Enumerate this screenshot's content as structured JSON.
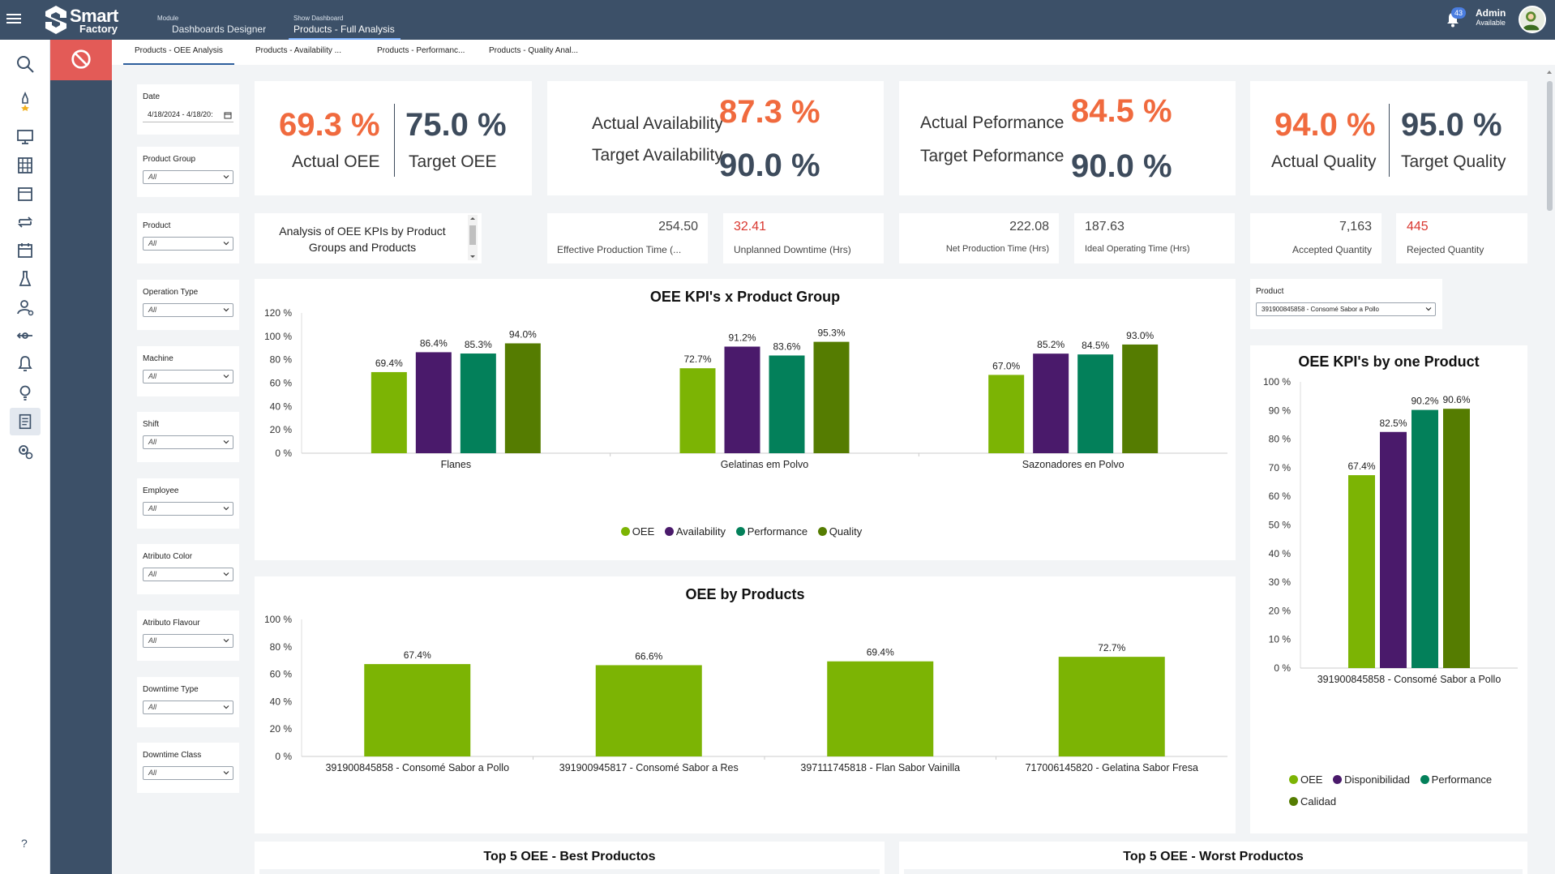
{
  "header": {
    "brand_line1": "Smart",
    "brand_line2": "Factory",
    "module_small": "Module",
    "module_name": "Dashboards Designer",
    "dash_small": "Show Dashboard",
    "dash_name": "Products - Full Analysis",
    "notification_count": "43",
    "user_name": "Admin",
    "user_status": "Available"
  },
  "tabs": [
    {
      "label": "Products - OEE Analysis"
    },
    {
      "label": "Products - Availability ..."
    },
    {
      "label": "Products - Performanc..."
    },
    {
      "label": "Products - Quality Anal..."
    }
  ],
  "filters": {
    "date": {
      "label": "Date",
      "value": "4/18/2024 - 4/18/20:"
    },
    "items": [
      {
        "label": "Product Group",
        "value": "All"
      },
      {
        "label": "Product",
        "value": "All"
      },
      {
        "label": "Operation Type",
        "value": "All"
      },
      {
        "label": "Machine",
        "value": "All"
      },
      {
        "label": "Shift",
        "value": "All"
      },
      {
        "label": "Employee",
        "value": "All"
      },
      {
        "label": "Atributo Color",
        "value": "All"
      },
      {
        "label": "Atributo Flavour",
        "value": "All"
      },
      {
        "label": "Downtime Type",
        "value": "All"
      },
      {
        "label": "Downtime Class",
        "value": "All"
      }
    ]
  },
  "kpis": {
    "actual_oee": "69.3 %",
    "actual_oee_label": "Actual OEE",
    "target_oee": "75.0 %",
    "target_oee_label": "Target OEE",
    "actual_avail_label": "Actual Availability",
    "actual_avail": "87.3 %",
    "target_avail_label": "Target Availability",
    "target_avail": "90.0 %",
    "actual_perf_label": "Actual Peformance",
    "actual_perf": "84.5 %",
    "target_perf_label": "Target Peformance",
    "target_perf": "90.0 %",
    "actual_quality": "94.0 %",
    "actual_quality_label": "Actual Quality",
    "target_quality": "95.0 %",
    "target_quality_label": "Target Quality"
  },
  "description": "Analysis of OEE KPIs by Product Groups and Products",
  "metrics": [
    {
      "value": "254.50",
      "label": "Effective Production Time (..."
    },
    {
      "value": "32.41",
      "label": "Unplanned Downtime (Hrs)"
    },
    {
      "value": "222.08",
      "label": "Net Production Time (Hrs)"
    },
    {
      "value": "187.63",
      "label": "Ideal Operating Time (Hrs)"
    },
    {
      "value": "7,163",
      "label": "Accepted Quantity"
    },
    {
      "value": "445",
      "label": "Rejected Quantity"
    }
  ],
  "product_selector": {
    "label": "Product",
    "value": "391900845858 - Consomé Sabor a Pollo"
  },
  "bottom_titles": {
    "best": "Top 5 OEE - Best Productos",
    "worst": "Top 5 OEE - Worst Productos"
  },
  "colors": {
    "oee": "#7cb404",
    "availability": "#4a1a6b",
    "performance": "#03805a",
    "quality": "#557c01",
    "accent_orange": "#f06a3e",
    "header": "#3c5068"
  },
  "icons": [
    "search-icon",
    "rocket-star-icon",
    "monitor-icon",
    "building-icon",
    "inbox-icon",
    "cycle-icon",
    "calendar-icon",
    "flask-icon",
    "user-gear-icon",
    "arrow-connect-icon",
    "bell-icon",
    "bulb-icon",
    "report-icon",
    "settings-search-icon",
    "help-icon"
  ],
  "chart_data": [
    {
      "type": "bar",
      "title": "OEE KPI's x Product Group",
      "categories": [
        "Flanes",
        "Gelatinas em Polvo",
        "Sazonadores en Polvo"
      ],
      "series": [
        {
          "name": "OEE",
          "values": [
            69.4,
            72.7,
            67.0
          ],
          "labels": [
            "69.4%",
            "72.7%",
            "67.0%"
          ]
        },
        {
          "name": "Availability",
          "values": [
            86.4,
            91.2,
            85.2
          ],
          "labels": [
            "86.4%",
            "91.2%",
            "85.2%"
          ]
        },
        {
          "name": "Performance",
          "values": [
            85.3,
            83.6,
            84.5
          ],
          "labels": [
            "85.3%",
            "83.6%",
            "84.5%"
          ]
        },
        {
          "name": "Quality",
          "values": [
            94.0,
            95.3,
            93.0
          ],
          "labels": [
            "94.0%",
            "95.3%",
            "93.0%"
          ]
        }
      ],
      "yticks": [
        "0 %",
        "20 %",
        "40 %",
        "60 %",
        "80 %",
        "100 %",
        "120 %"
      ],
      "ylim": [
        0,
        120
      ],
      "legend_position": "bottom"
    },
    {
      "type": "bar",
      "title": "OEE by Products",
      "categories": [
        "391900845858 - Consomé Sabor a Pollo",
        "391900945817 - Consomé Sabor a Res",
        "397111745818 - Flan Sabor Vainilla",
        "717006145820 - Gelatina Sabor Fresa"
      ],
      "series": [
        {
          "values": [
            67.4,
            66.6,
            69.4,
            72.7
          ],
          "labels": [
            "67.4%",
            "66.6%",
            "69.4%",
            "72.7%"
          ]
        }
      ],
      "yticks": [
        "0 %",
        "20 %",
        "40 %",
        "60 %",
        "80 %",
        "100 %"
      ],
      "ylim": [
        0,
        100
      ]
    },
    {
      "type": "bar",
      "title": "OEE KPI's by one Product",
      "categories": [
        "391900845858 - Consomé Sabor a Pollo"
      ],
      "series": [
        {
          "name": "OEE",
          "values": [
            67.4
          ],
          "labels": [
            "67.4%"
          ]
        },
        {
          "name": "Disponibilidad",
          "values": [
            82.5
          ],
          "labels": [
            "82.5%"
          ]
        },
        {
          "name": "Performance",
          "values": [
            90.2
          ],
          "labels": [
            "90.2%"
          ]
        },
        {
          "name": "Calidad",
          "values": [
            90.6
          ],
          "labels": [
            "90.6%"
          ]
        }
      ],
      "yticks": [
        "0 %",
        "10 %",
        "20 %",
        "30 %",
        "40 %",
        "50 %",
        "60 %",
        "70 %",
        "80 %",
        "90 %",
        "100 %"
      ],
      "ylim": [
        0,
        100
      ],
      "legend_position": "bottom"
    }
  ]
}
